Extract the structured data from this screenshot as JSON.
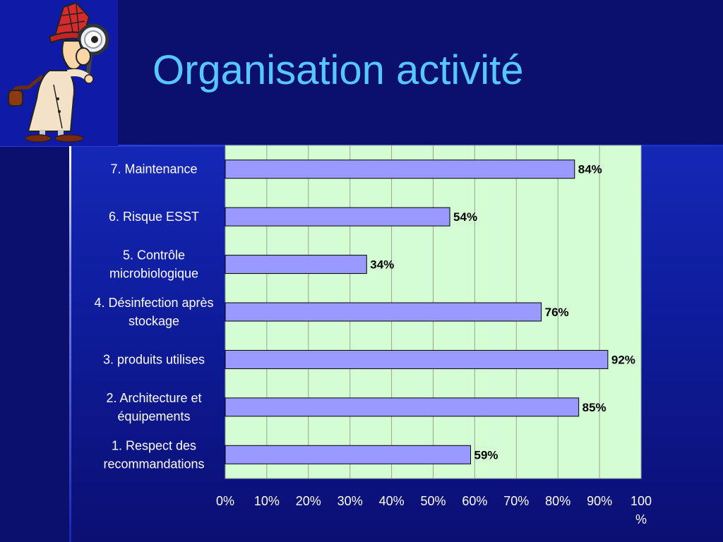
{
  "slide": {
    "title": "Organisation activité"
  },
  "illustration": {
    "name": "detective-clipart"
  },
  "chart_data": {
    "type": "bar",
    "orientation": "horizontal",
    "categories": [
      [
        "7. Maintenance"
      ],
      [
        "6. Risque  ESST"
      ],
      [
        "5. Contrôle",
        "microbiologique"
      ],
      [
        "4. Désinfection après",
        "stockage"
      ],
      [
        "3. produits utilises"
      ],
      [
        "2. Architecture et",
        "équipements"
      ],
      [
        "1. Respect des",
        "recommandations"
      ]
    ],
    "values": [
      84,
      54,
      34,
      76,
      92,
      85,
      59
    ],
    "data_labels": [
      "84%",
      "54%",
      "34%",
      "76%",
      "92%",
      "85%",
      "59%"
    ],
    "x_ticks": [
      [
        "0%"
      ],
      [
        "10%"
      ],
      [
        "20%"
      ],
      [
        "30%"
      ],
      [
        "40%"
      ],
      [
        "50%"
      ],
      [
        "60%"
      ],
      [
        "70%"
      ],
      [
        "80%"
      ],
      [
        "90%"
      ],
      [
        "100",
        "%"
      ]
    ],
    "xlim": [
      0,
      100
    ],
    "grid": "vertical",
    "legend": "none",
    "colors": {
      "plot_bg": "#d4fdd4",
      "bar_fill": "#9999ff",
      "bar_stroke": "#000000",
      "grid": "#9aa39a"
    }
  }
}
